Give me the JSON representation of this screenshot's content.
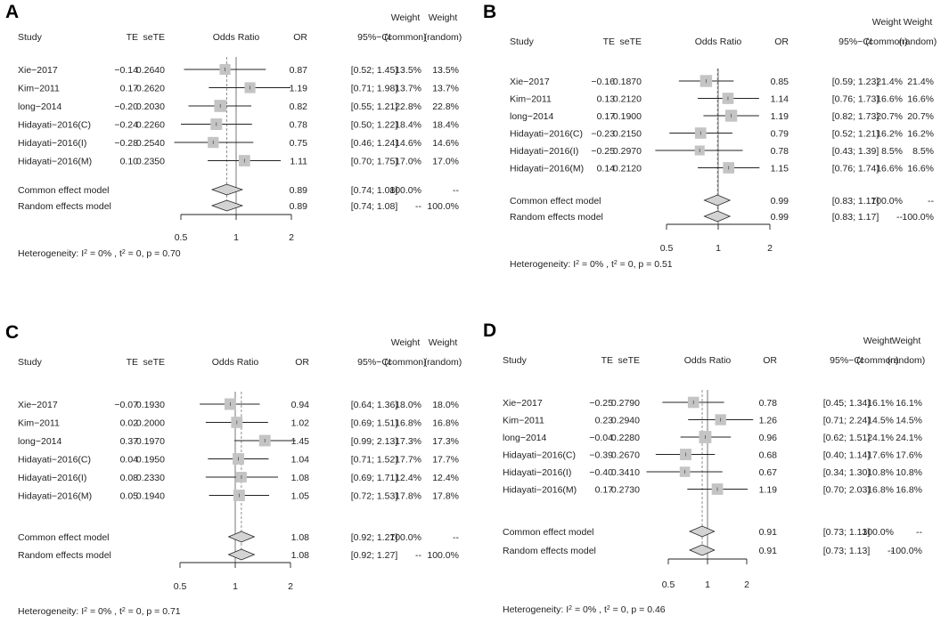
{
  "headers": {
    "study": "Study",
    "te": "TE",
    "sete": "seTE",
    "or_plot": "Odds Ratio",
    "or": "OR",
    "ci": "95%−CI",
    "weight": "Weight",
    "common": "(common)",
    "random": "(random)"
  },
  "chart_data": [
    {
      "type": "forest",
      "panel": "A",
      "x_scale": "log",
      "xlim": [
        0.5,
        2
      ],
      "ticks": [
        "0.5",
        "1",
        "2"
      ],
      "studies": [
        {
          "name": "Xie−2017",
          "te": "−0.14",
          "sete": "0.2640",
          "or": 0.87,
          "or_label": "0.87",
          "ci_low": 0.52,
          "ci_high": 1.45,
          "ci_label": "[0.52; 1.45]",
          "w_common": "13.5%",
          "w_random": "13.5%",
          "weight": 13.5
        },
        {
          "name": "Kim−2011",
          "te": "0.17",
          "sete": "0.2620",
          "or": 1.19,
          "or_label": "1.19",
          "ci_low": 0.71,
          "ci_high": 1.98,
          "ci_label": "[0.71; 1.98]",
          "w_common": "13.7%",
          "w_random": "13.7%",
          "weight": 13.7
        },
        {
          "name": "long−2014",
          "te": "−0.20",
          "sete": "0.2030",
          "or": 0.82,
          "or_label": "0.82",
          "ci_low": 0.55,
          "ci_high": 1.21,
          "ci_label": "[0.55; 1.21]",
          "w_common": "22.8%",
          "w_random": "22.8%",
          "weight": 22.8
        },
        {
          "name": "Hidayati−2016(C)",
          "te": "−0.24",
          "sete": "0.2260",
          "or": 0.78,
          "or_label": "0.78",
          "ci_low": 0.5,
          "ci_high": 1.22,
          "ci_label": "[0.50; 1.22]",
          "w_common": "18.4%",
          "w_random": "18.4%",
          "weight": 18.4
        },
        {
          "name": "Hidayati−2016(I)",
          "te": "−0.28",
          "sete": "0.2540",
          "or": 0.75,
          "or_label": "0.75",
          "ci_low": 0.46,
          "ci_high": 1.24,
          "ci_label": "[0.46; 1.24]",
          "w_common": "14.6%",
          "w_random": "14.6%",
          "weight": 14.6
        },
        {
          "name": "Hidayati−2016(M)",
          "te": "0.10",
          "sete": "0.2350",
          "or": 1.11,
          "or_label": "1.11",
          "ci_low": 0.7,
          "ci_high": 1.75,
          "ci_label": "[0.70; 1.75]",
          "w_common": "17.0%",
          "w_random": "17.0%",
          "weight": 17.0
        }
      ],
      "models": [
        {
          "name": "Common effect model",
          "or": 0.89,
          "or_label": "0.89",
          "ci_low": 0.74,
          "ci_high": 1.08,
          "ci_label": "[0.74; 1.08]",
          "w_common": "100.0%",
          "w_random": "--"
        },
        {
          "name": "Random effects model",
          "or": 0.89,
          "or_label": "0.89",
          "ci_low": 0.74,
          "ci_high": 1.08,
          "ci_label": "[0.74; 1.08]",
          "w_common": "--",
          "w_random": "100.0%"
        }
      ],
      "heterogeneity": {
        "prefix": "Heterogeneity:",
        "i2": "0%",
        "tau2": "0",
        "p": "0.70"
      }
    },
    {
      "type": "forest",
      "panel": "B",
      "x_scale": "log",
      "xlim": [
        0.5,
        2
      ],
      "ticks": [
        "0.5",
        "1",
        "2"
      ],
      "studies": [
        {
          "name": "Xie−2017",
          "te": "−0.16",
          "sete": "0.1870",
          "or": 0.85,
          "or_label": "0.85",
          "ci_low": 0.59,
          "ci_high": 1.23,
          "ci_label": "[0.59; 1.23]",
          "w_common": "21.4%",
          "w_random": "21.4%",
          "weight": 21.4
        },
        {
          "name": "Kim−2011",
          "te": "0.13",
          "sete": "0.2120",
          "or": 1.14,
          "or_label": "1.14",
          "ci_low": 0.76,
          "ci_high": 1.73,
          "ci_label": "[0.76; 1.73]",
          "w_common": "16.6%",
          "w_random": "16.6%",
          "weight": 16.6
        },
        {
          "name": "long−2014",
          "te": "0.17",
          "sete": "0.1900",
          "or": 1.19,
          "or_label": "1.19",
          "ci_low": 0.82,
          "ci_high": 1.73,
          "ci_label": "[0.82; 1.73]",
          "w_common": "20.7%",
          "w_random": "20.7%",
          "weight": 20.7
        },
        {
          "name": "Hidayati−2016(C)",
          "te": "−0.23",
          "sete": "0.2150",
          "or": 0.79,
          "or_label": "0.79",
          "ci_low": 0.52,
          "ci_high": 1.21,
          "ci_label": "[0.52; 1.21]",
          "w_common": "16.2%",
          "w_random": "16.2%",
          "weight": 16.2
        },
        {
          "name": "Hidayati−2016(I)",
          "te": "−0.25",
          "sete": "0.2970",
          "or": 0.78,
          "or_label": "0.78",
          "ci_low": 0.43,
          "ci_high": 1.39,
          "ci_label": "[0.43; 1.39]",
          "w_common": "8.5%",
          "w_random": "8.5%",
          "weight": 8.5
        },
        {
          "name": "Hidayati−2016(M)",
          "te": "0.14",
          "sete": "0.2120",
          "or": 1.15,
          "or_label": "1.15",
          "ci_low": 0.76,
          "ci_high": 1.74,
          "ci_label": "[0.76; 1.74]",
          "w_common": "16.6%",
          "w_random": "16.6%",
          "weight": 16.6
        }
      ],
      "models": [
        {
          "name": "Common effect model",
          "or": 0.99,
          "or_label": "0.99",
          "ci_low": 0.83,
          "ci_high": 1.17,
          "ci_label": "[0.83; 1.17]",
          "w_common": "100.0%",
          "w_random": "--"
        },
        {
          "name": "Random effects model",
          "or": 0.99,
          "or_label": "0.99",
          "ci_low": 0.83,
          "ci_high": 1.17,
          "ci_label": "[0.83; 1.17]",
          "w_common": "--",
          "w_random": "100.0%"
        }
      ],
      "heterogeneity": {
        "prefix": "Heterogeneity:",
        "i2": "0%",
        "tau2": "0",
        "p": "0.51"
      }
    },
    {
      "type": "forest",
      "panel": "C",
      "x_scale": "log",
      "xlim": [
        0.5,
        2
      ],
      "ticks": [
        "0.5",
        "1",
        "2"
      ],
      "studies": [
        {
          "name": "Xie−2017",
          "te": "−0.07",
          "sete": "0.1930",
          "or": 0.94,
          "or_label": "0.94",
          "ci_low": 0.64,
          "ci_high": 1.36,
          "ci_label": "[0.64; 1.36]",
          "w_common": "18.0%",
          "w_random": "18.0%",
          "weight": 18.0
        },
        {
          "name": "Kim−2011",
          "te": "0.02",
          "sete": "0.2000",
          "or": 1.02,
          "or_label": "1.02",
          "ci_low": 0.69,
          "ci_high": 1.51,
          "ci_label": "[0.69; 1.51]",
          "w_common": "16.8%",
          "w_random": "16.8%",
          "weight": 16.8
        },
        {
          "name": "long−2014",
          "te": "0.37",
          "sete": "0.1970",
          "or": 1.45,
          "or_label": "1.45",
          "ci_low": 0.99,
          "ci_high": 2.13,
          "ci_label": "[0.99; 2.13]",
          "w_common": "17.3%",
          "w_random": "17.3%",
          "weight": 17.3
        },
        {
          "name": "Hidayati−2016(C)",
          "te": "0.04",
          "sete": "0.1950",
          "or": 1.04,
          "or_label": "1.04",
          "ci_low": 0.71,
          "ci_high": 1.52,
          "ci_label": "[0.71; 1.52]",
          "w_common": "17.7%",
          "w_random": "17.7%",
          "weight": 17.7
        },
        {
          "name": "Hidayati−2016(I)",
          "te": "0.08",
          "sete": "0.2330",
          "or": 1.08,
          "or_label": "1.08",
          "ci_low": 0.69,
          "ci_high": 1.71,
          "ci_label": "[0.69; 1.71]",
          "w_common": "12.4%",
          "w_random": "12.4%",
          "weight": 12.4
        },
        {
          "name": "Hidayati−2016(M)",
          "te": "0.05",
          "sete": "0.1940",
          "or": 1.05,
          "or_label": "1.05",
          "ci_low": 0.72,
          "ci_high": 1.53,
          "ci_label": "[0.72; 1.53]",
          "w_common": "17.8%",
          "w_random": "17.8%",
          "weight": 17.8
        }
      ],
      "models": [
        {
          "name": "Common effect model",
          "or": 1.08,
          "or_label": "1.08",
          "ci_low": 0.92,
          "ci_high": 1.27,
          "ci_label": "[0.92; 1.27]",
          "w_common": "100.0%",
          "w_random": "--"
        },
        {
          "name": "Random effects model",
          "or": 1.08,
          "or_label": "1.08",
          "ci_low": 0.92,
          "ci_high": 1.27,
          "ci_label": "[0.92; 1.27]",
          "w_common": "--",
          "w_random": "100.0%"
        }
      ],
      "heterogeneity": {
        "prefix": "Heterogeneity:",
        "i2": "0%",
        "tau2": "0",
        "p": "0.71"
      }
    },
    {
      "type": "forest",
      "panel": "D",
      "x_scale": "log",
      "xlim": [
        0.5,
        2
      ],
      "ticks": [
        "0.5",
        "1",
        "2"
      ],
      "studies": [
        {
          "name": "Xie−2017",
          "te": "−0.25",
          "sete": "0.2790",
          "or": 0.78,
          "or_label": "0.78",
          "ci_low": 0.45,
          "ci_high": 1.34,
          "ci_label": "[0.45; 1.34]",
          "w_common": "16.1%",
          "w_random": "16.1%",
          "weight": 16.1
        },
        {
          "name": "Kim−2011",
          "te": "0.23",
          "sete": "0.2940",
          "or": 1.26,
          "or_label": "1.26",
          "ci_low": 0.71,
          "ci_high": 2.24,
          "ci_label": "[0.71; 2.24]",
          "w_common": "14.5%",
          "w_random": "14.5%",
          "weight": 14.5
        },
        {
          "name": "long−2014",
          "te": "−0.04",
          "sete": "0.2280",
          "or": 0.96,
          "or_label": "0.96",
          "ci_low": 0.62,
          "ci_high": 1.51,
          "ci_label": "[0.62; 1.51]",
          "w_common": "24.1%",
          "w_random": "24.1%",
          "weight": 24.1
        },
        {
          "name": "Hidayati−2016(C)",
          "te": "−0.39",
          "sete": "0.2670",
          "or": 0.68,
          "or_label": "0.68",
          "ci_low": 0.4,
          "ci_high": 1.14,
          "ci_label": "[0.40; 1.14]",
          "w_common": "17.6%",
          "w_random": "17.6%",
          "weight": 17.6
        },
        {
          "name": "Hidayati−2016(I)",
          "te": "−0.40",
          "sete": "0.3410",
          "or": 0.67,
          "or_label": "0.67",
          "ci_low": 0.34,
          "ci_high": 1.3,
          "ci_label": "[0.34; 1.30]",
          "w_common": "10.8%",
          "w_random": "10.8%",
          "weight": 10.8
        },
        {
          "name": "Hidayati−2016(M)",
          "te": "0.17",
          "sete": "0.2730",
          "or": 1.19,
          "or_label": "1.19",
          "ci_low": 0.7,
          "ci_high": 2.03,
          "ci_label": "[0.70; 2.03]",
          "w_common": "16.8%",
          "w_random": "16.8%",
          "weight": 16.8
        }
      ],
      "models": [
        {
          "name": "Common effect model",
          "or": 0.91,
          "or_label": "0.91",
          "ci_low": 0.73,
          "ci_high": 1.13,
          "ci_label": "[0.73; 1.13]",
          "w_common": "100.0%",
          "w_random": "--"
        },
        {
          "name": "Random effects model",
          "or": 0.91,
          "or_label": "0.91",
          "ci_low": 0.73,
          "ci_high": 1.13,
          "ci_label": "[0.73; 1.13]",
          "w_common": "--",
          "w_random": "100.0%"
        }
      ],
      "heterogeneity": {
        "prefix": "Heterogeneity:",
        "i2": "0%",
        "tau2": "0",
        "p": "0.46"
      }
    }
  ],
  "colors": {
    "text": "#222222",
    "line": "#222222",
    "square": "#c4c4c4",
    "diamond_fill": "#d3d3d3",
    "reference_line": "#555555",
    "pooled_line": "#777777"
  }
}
